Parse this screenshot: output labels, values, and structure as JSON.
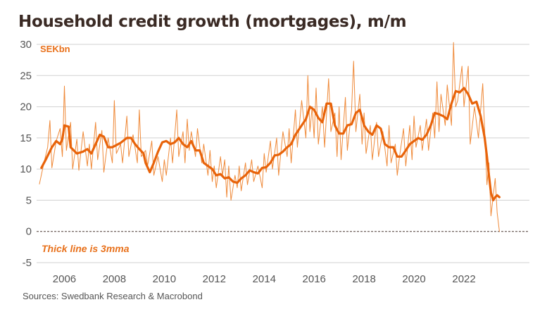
{
  "title": "Household credit growth (mortgages), m/m",
  "source": "Sources: Swedbank Research & Macrobond",
  "chart_data": {
    "type": "line",
    "unit_label": "SEKbn",
    "annotation": "Thick line is 3mma",
    "ylim": [
      -5,
      30
    ],
    "yticks": [
      30,
      25,
      20,
      15,
      10,
      5,
      0,
      -5
    ],
    "xlim": [
      2005.0,
      2024.0
    ],
    "xticks": [
      2006,
      2008,
      2010,
      2012,
      2014,
      2016,
      2018,
      2020,
      2022
    ],
    "grid": true,
    "zero_line": "dashed",
    "colors": {
      "monthly": "#ef8a3a",
      "mma": "#e8630a"
    },
    "series": [
      {
        "key": "monthly",
        "style": "thin",
        "points": [
          [
            2005.0,
            7.6
          ],
          [
            2005.17,
            10.8
          ],
          [
            2005.33,
            13.5
          ],
          [
            2005.42,
            17.8
          ],
          [
            2005.5,
            10.2
          ],
          [
            2005.67,
            14.5
          ],
          [
            2005.83,
            16.5
          ],
          [
            2005.92,
            12.0
          ],
          [
            2006.0,
            23.3
          ],
          [
            2006.08,
            13.0
          ],
          [
            2006.25,
            17.5
          ],
          [
            2006.33,
            10.0
          ],
          [
            2006.5,
            14.8
          ],
          [
            2006.58,
            9.8
          ],
          [
            2006.75,
            16.0
          ],
          [
            2006.92,
            10.5
          ],
          [
            2007.0,
            14.0
          ],
          [
            2007.08,
            10.0
          ],
          [
            2007.25,
            17.5
          ],
          [
            2007.33,
            11.5
          ],
          [
            2007.5,
            16.2
          ],
          [
            2007.58,
            9.5
          ],
          [
            2007.75,
            15.0
          ],
          [
            2007.92,
            11.0
          ],
          [
            2008.0,
            21.0
          ],
          [
            2008.08,
            12.5
          ],
          [
            2008.25,
            14.0
          ],
          [
            2008.33,
            11.0
          ],
          [
            2008.5,
            18.5
          ],
          [
            2008.58,
            12.0
          ],
          [
            2008.75,
            15.5
          ],
          [
            2008.92,
            11.0
          ],
          [
            2009.0,
            19.5
          ],
          [
            2009.08,
            12.0
          ],
          [
            2009.25,
            13.0
          ],
          [
            2009.33,
            10.5
          ],
          [
            2009.5,
            14.5
          ],
          [
            2009.58,
            9.0
          ],
          [
            2009.75,
            12.0
          ],
          [
            2009.92,
            8.0
          ],
          [
            2010.0,
            11.5
          ],
          [
            2010.08,
            9.0
          ],
          [
            2010.25,
            15.0
          ],
          [
            2010.33,
            11.0
          ],
          [
            2010.5,
            19.5
          ],
          [
            2010.58,
            12.0
          ],
          [
            2010.75,
            16.0
          ],
          [
            2010.83,
            11.0
          ],
          [
            2010.92,
            18.0
          ],
          [
            2011.0,
            13.0
          ],
          [
            2011.08,
            16.0
          ],
          [
            2011.25,
            12.0
          ],
          [
            2011.33,
            16.5
          ],
          [
            2011.5,
            11.0
          ],
          [
            2011.58,
            14.0
          ],
          [
            2011.75,
            9.0
          ],
          [
            2011.83,
            13.0
          ],
          [
            2011.92,
            8.0
          ],
          [
            2012.0,
            10.5
          ],
          [
            2012.08,
            7.0
          ],
          [
            2012.25,
            12.0
          ],
          [
            2012.33,
            9.0
          ],
          [
            2012.42,
            11.5
          ],
          [
            2012.5,
            5.5
          ],
          [
            2012.58,
            10.5
          ],
          [
            2012.67,
            5.0
          ],
          [
            2012.83,
            9.0
          ],
          [
            2012.92,
            7.0
          ],
          [
            2013.0,
            10.5
          ],
          [
            2013.08,
            6.5
          ],
          [
            2013.25,
            11.0
          ],
          [
            2013.33,
            7.5
          ],
          [
            2013.5,
            11.5
          ],
          [
            2013.58,
            8.0
          ],
          [
            2013.75,
            10.5
          ],
          [
            2013.92,
            7.0
          ],
          [
            2014.0,
            12.5
          ],
          [
            2014.08,
            9.5
          ],
          [
            2014.25,
            14.5
          ],
          [
            2014.33,
            10.0
          ],
          [
            2014.5,
            15.0
          ],
          [
            2014.58,
            9.0
          ],
          [
            2014.75,
            16.0
          ],
          [
            2014.92,
            12.0
          ],
          [
            2015.0,
            16.5
          ],
          [
            2015.08,
            11.0
          ],
          [
            2015.25,
            19.5
          ],
          [
            2015.33,
            13.5
          ],
          [
            2015.5,
            21.0
          ],
          [
            2015.67,
            15.0
          ],
          [
            2015.75,
            25.0
          ],
          [
            2015.83,
            16.0
          ],
          [
            2015.92,
            20.0
          ],
          [
            2016.0,
            15.0
          ],
          [
            2016.08,
            23.0
          ],
          [
            2016.17,
            14.0
          ],
          [
            2016.33,
            20.0
          ],
          [
            2016.42,
            13.5
          ],
          [
            2016.58,
            24.5
          ],
          [
            2016.67,
            16.0
          ],
          [
            2016.83,
            19.0
          ],
          [
            2016.92,
            12.0
          ],
          [
            2017.0,
            20.0
          ],
          [
            2017.08,
            11.5
          ],
          [
            2017.25,
            21.5
          ],
          [
            2017.33,
            13.0
          ],
          [
            2017.5,
            19.5
          ],
          [
            2017.58,
            27.3
          ],
          [
            2017.67,
            16.0
          ],
          [
            2017.83,
            22.0
          ],
          [
            2017.92,
            14.0
          ],
          [
            2018.0,
            19.0
          ],
          [
            2018.08,
            12.5
          ],
          [
            2018.25,
            17.0
          ],
          [
            2018.33,
            11.5
          ],
          [
            2018.5,
            17.5
          ],
          [
            2018.58,
            12.0
          ],
          [
            2018.75,
            16.0
          ],
          [
            2018.92,
            10.5
          ],
          [
            2019.0,
            17.0
          ],
          [
            2019.08,
            11.0
          ],
          [
            2019.25,
            14.0
          ],
          [
            2019.33,
            9.0
          ],
          [
            2019.42,
            12.0
          ],
          [
            2019.58,
            16.5
          ],
          [
            2019.67,
            10.5
          ],
          [
            2019.83,
            17.0
          ],
          [
            2019.92,
            11.5
          ],
          [
            2020.0,
            18.5
          ],
          [
            2020.08,
            13.5
          ],
          [
            2020.25,
            17.0
          ],
          [
            2020.33,
            13.0
          ],
          [
            2020.5,
            18.0
          ],
          [
            2020.58,
            13.0
          ],
          [
            2020.75,
            19.0
          ],
          [
            2020.83,
            15.0
          ],
          [
            2020.92,
            24.0
          ],
          [
            2021.0,
            16.0
          ],
          [
            2021.08,
            22.0
          ],
          [
            2021.25,
            17.0
          ],
          [
            2021.33,
            23.5
          ],
          [
            2021.5,
            17.0
          ],
          [
            2021.58,
            30.3
          ],
          [
            2021.67,
            20.0
          ],
          [
            2021.75,
            21.0
          ],
          [
            2021.92,
            26.5
          ],
          [
            2022.0,
            20.0
          ],
          [
            2022.17,
            26.5
          ],
          [
            2022.25,
            14.0
          ],
          [
            2022.42,
            20.0
          ],
          [
            2022.58,
            15.0
          ],
          [
            2022.75,
            23.7
          ],
          [
            2022.92,
            7.5
          ],
          [
            2023.0,
            11.0
          ],
          [
            2023.08,
            2.5
          ],
          [
            2023.25,
            8.5
          ],
          [
            2023.33,
            3.0
          ],
          [
            2023.42,
            0.0
          ]
        ]
      },
      {
        "key": "mma",
        "style": "thick",
        "points": [
          [
            2005.08,
            10.2
          ],
          [
            2005.25,
            11.5
          ],
          [
            2005.5,
            13.5
          ],
          [
            2005.67,
            14.5
          ],
          [
            2005.83,
            14.0
          ],
          [
            2005.92,
            14.8
          ],
          [
            2006.0,
            17.0
          ],
          [
            2006.17,
            16.8
          ],
          [
            2006.25,
            13.5
          ],
          [
            2006.5,
            12.5
          ],
          [
            2006.75,
            12.8
          ],
          [
            2006.92,
            13.2
          ],
          [
            2007.08,
            12.5
          ],
          [
            2007.25,
            14.0
          ],
          [
            2007.42,
            15.5
          ],
          [
            2007.58,
            15.2
          ],
          [
            2007.75,
            13.5
          ],
          [
            2007.92,
            13.5
          ],
          [
            2008.25,
            14.2
          ],
          [
            2008.5,
            15.0
          ],
          [
            2008.67,
            15.0
          ],
          [
            2008.83,
            14.0
          ],
          [
            2009.0,
            13.2
          ],
          [
            2009.17,
            12.5
          ],
          [
            2009.25,
            11.0
          ],
          [
            2009.42,
            9.5
          ],
          [
            2009.58,
            11.0
          ],
          [
            2009.75,
            12.8
          ],
          [
            2009.92,
            14.3
          ],
          [
            2010.08,
            14.5
          ],
          [
            2010.25,
            14.0
          ],
          [
            2010.42,
            14.3
          ],
          [
            2010.58,
            15.0
          ],
          [
            2010.75,
            14.0
          ],
          [
            2010.92,
            13.5
          ],
          [
            2011.08,
            14.5
          ],
          [
            2011.25,
            13.0
          ],
          [
            2011.42,
            13.0
          ],
          [
            2011.58,
            11.0
          ],
          [
            2011.75,
            10.5
          ],
          [
            2011.92,
            10.0
          ],
          [
            2012.08,
            9.0
          ],
          [
            2012.25,
            9.2
          ],
          [
            2012.42,
            8.5
          ],
          [
            2012.58,
            8.7
          ],
          [
            2012.75,
            8.0
          ],
          [
            2012.92,
            7.8
          ],
          [
            2013.08,
            8.5
          ],
          [
            2013.25,
            9.0
          ],
          [
            2013.42,
            9.8
          ],
          [
            2013.58,
            9.5
          ],
          [
            2013.75,
            9.3
          ],
          [
            2013.92,
            10.2
          ],
          [
            2014.08,
            10.3
          ],
          [
            2014.25,
            11.0
          ],
          [
            2014.42,
            12.2
          ],
          [
            2014.58,
            12.3
          ],
          [
            2014.75,
            12.8
          ],
          [
            2014.92,
            13.5
          ],
          [
            2015.08,
            14.0
          ],
          [
            2015.25,
            15.5
          ],
          [
            2015.5,
            17.0
          ],
          [
            2015.67,
            18.0
          ],
          [
            2015.83,
            20.0
          ],
          [
            2016.0,
            19.5
          ],
          [
            2016.17,
            18.2
          ],
          [
            2016.33,
            17.5
          ],
          [
            2016.5,
            20.5
          ],
          [
            2016.67,
            20.5
          ],
          [
            2016.83,
            17.0
          ],
          [
            2017.0,
            15.7
          ],
          [
            2017.17,
            15.7
          ],
          [
            2017.33,
            17.0
          ],
          [
            2017.5,
            17.2
          ],
          [
            2017.67,
            19.0
          ],
          [
            2017.83,
            19.5
          ],
          [
            2018.0,
            17.0
          ],
          [
            2018.17,
            16.0
          ],
          [
            2018.33,
            15.5
          ],
          [
            2018.5,
            17.0
          ],
          [
            2018.67,
            16.5
          ],
          [
            2018.83,
            14.0
          ],
          [
            2019.0,
            13.5
          ],
          [
            2019.17,
            13.5
          ],
          [
            2019.33,
            12.0
          ],
          [
            2019.5,
            12.0
          ],
          [
            2019.67,
            13.0
          ],
          [
            2019.83,
            14.0
          ],
          [
            2020.0,
            14.5
          ],
          [
            2020.17,
            15.0
          ],
          [
            2020.33,
            14.7
          ],
          [
            2020.5,
            15.5
          ],
          [
            2020.67,
            17.0
          ],
          [
            2020.83,
            19.0
          ],
          [
            2021.0,
            18.8
          ],
          [
            2021.17,
            18.5
          ],
          [
            2021.33,
            18.0
          ],
          [
            2021.5,
            20.5
          ],
          [
            2021.67,
            22.5
          ],
          [
            2021.83,
            22.3
          ],
          [
            2022.0,
            23.0
          ],
          [
            2022.17,
            22.0
          ],
          [
            2022.33,
            20.5
          ],
          [
            2022.5,
            20.8
          ],
          [
            2022.67,
            18.5
          ],
          [
            2022.83,
            15.0
          ],
          [
            2022.92,
            12.0
          ],
          [
            2023.0,
            9.0
          ],
          [
            2023.08,
            6.2
          ],
          [
            2023.17,
            5.0
          ],
          [
            2023.25,
            5.5
          ],
          [
            2023.33,
            5.8
          ],
          [
            2023.42,
            5.5
          ]
        ]
      }
    ]
  }
}
